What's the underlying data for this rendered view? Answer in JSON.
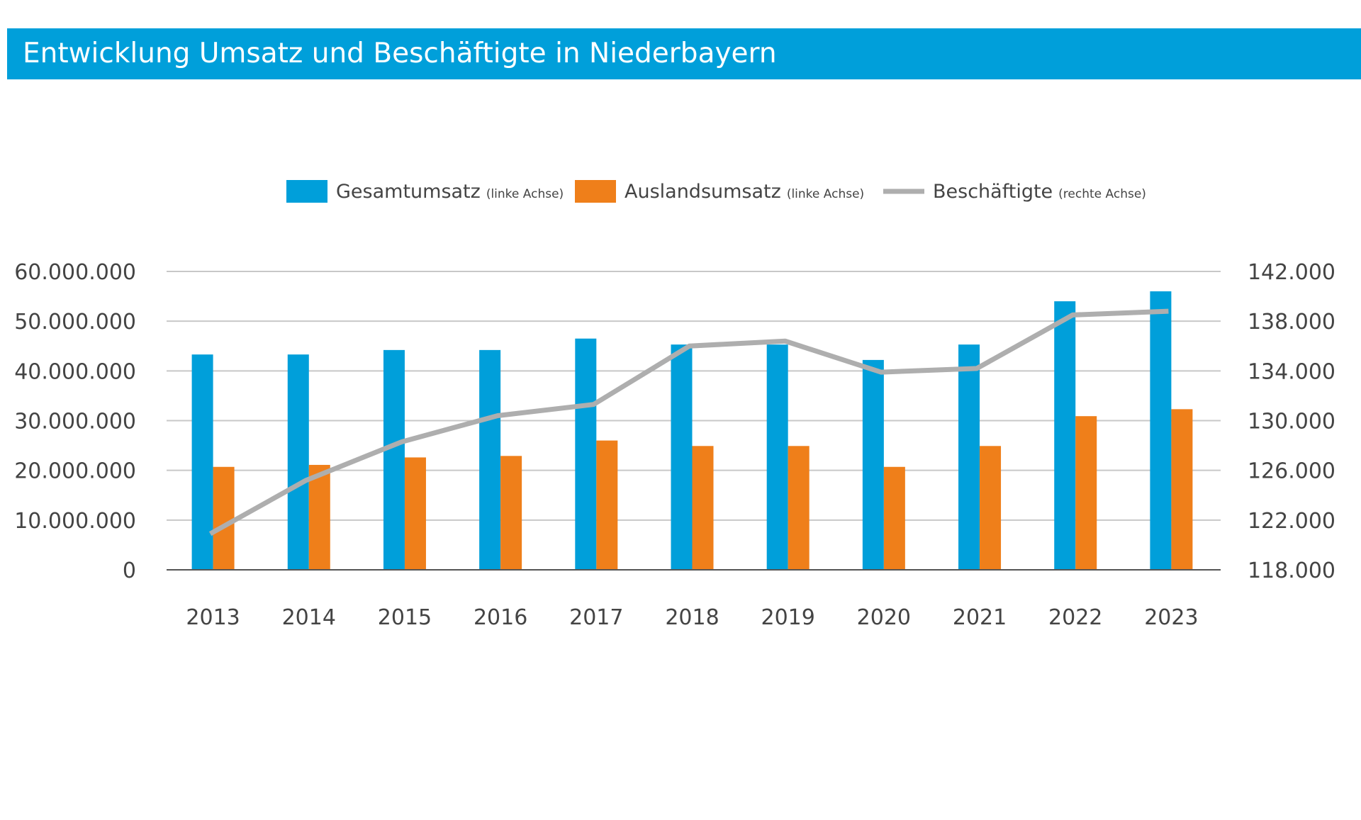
{
  "header": {
    "title": "Entwicklung Umsatz und Beschäftigte in Niederbayern"
  },
  "colors": {
    "header_bg": "#009fda",
    "gesamt": "#009fda",
    "ausland": "#ef7f1a",
    "line": "#aeaeae",
    "grid": "#c8c8c8",
    "axis": "#555555"
  },
  "legend": [
    {
      "name": "Gesamtumsatz",
      "note": "(linke Achse)",
      "kind": "bar",
      "color": "#009fda"
    },
    {
      "name": "Auslandsumsatz",
      "note": "(linke Achse)",
      "kind": "bar",
      "color": "#ef7f1a"
    },
    {
      "name": "Beschäftigte",
      "note": "(rechte Achse)",
      "kind": "line",
      "color": "#aeaeae"
    }
  ],
  "chart_data": {
    "type": "bar",
    "title": "Entwicklung Umsatz und Beschäftigte in Niederbayern",
    "categories": [
      "2013",
      "2014",
      "2015",
      "2016",
      "2017",
      "2018",
      "2019",
      "2020",
      "2021",
      "2022",
      "2023"
    ],
    "series": [
      {
        "name": "Gesamtumsatz",
        "axis": "left",
        "type": "bar",
        "values": [
          43300000,
          43300000,
          44200000,
          44200000,
          46500000,
          45300000,
          45300000,
          42200000,
          45300000,
          54000000,
          56000000
        ]
      },
      {
        "name": "Auslandsumsatz",
        "axis": "left",
        "type": "bar",
        "values": [
          20700000,
          21100000,
          22600000,
          22900000,
          26000000,
          24900000,
          24900000,
          20700000,
          24900000,
          30900000,
          32300000
        ]
      },
      {
        "name": "Beschäftigte",
        "axis": "right",
        "type": "line",
        "values": [
          120900,
          125200,
          128300,
          130400,
          131300,
          136000,
          136400,
          133900,
          134200,
          138500,
          138800
        ]
      }
    ],
    "y_left": {
      "min": 0,
      "max": 60000000,
      "ticks": [
        "0",
        "10.000.000",
        "20.000.000",
        "30.000.000",
        "40.000.000",
        "50.000.000",
        "60.000.000"
      ]
    },
    "y_right": {
      "min": 118000,
      "max": 142000,
      "ticks": [
        "118.000",
        "122.000",
        "126.000",
        "130.000",
        "134.000",
        "138.000",
        "142.000"
      ]
    },
    "grid": true,
    "legend_position": "top"
  }
}
